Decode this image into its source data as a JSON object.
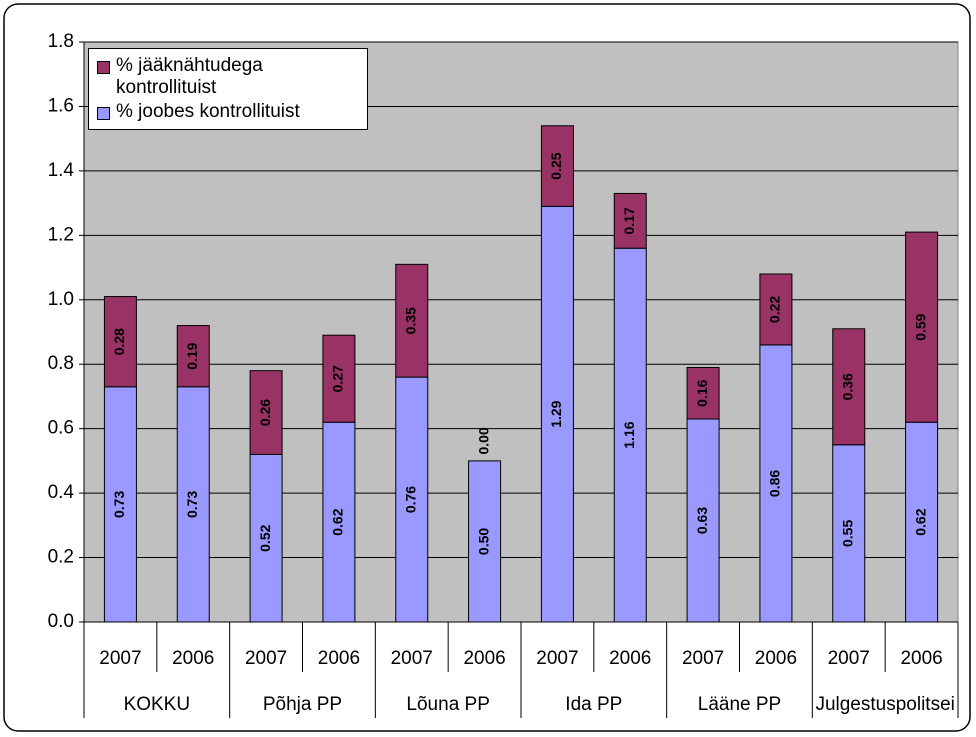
{
  "chart_data": {
    "type": "stacked_bar",
    "categories": [
      "2007",
      "2006",
      "2007",
      "2006",
      "2007",
      "2006",
      "2007",
      "2006",
      "2007",
      "2006",
      "2007",
      "2006"
    ],
    "groups": [
      "KOKKU",
      "Põhja PP",
      "Lõuna PP",
      "Ida PP",
      "Lääne PP",
      "Julgestuspolitsei"
    ],
    "series": [
      {
        "name": "% joobes kontrollituist",
        "color": "#9999ff",
        "values": [
          0.73,
          0.73,
          0.52,
          0.62,
          0.76,
          0.5,
          1.29,
          1.16,
          0.63,
          0.86,
          0.55,
          0.62
        ],
        "value_labels": [
          "0.73",
          "0.73",
          "0.52",
          "0.62",
          "0.76",
          "0.50",
          "1.29",
          "1.16",
          "0.63",
          "0.86",
          "0.55",
          "0.62"
        ]
      },
      {
        "name": "% jääknähtudega kontrollituist",
        "color": "#993366",
        "values": [
          0.28,
          0.19,
          0.26,
          0.27,
          0.35,
          0.0,
          0.25,
          0.17,
          0.16,
          0.22,
          0.36,
          0.59
        ],
        "value_labels": [
          "0.28",
          "0.19",
          "0.26",
          "0.27",
          "0.35",
          "0.00",
          "0.25",
          "0.17",
          "0.16",
          "0.22",
          "0.36",
          "0.59"
        ]
      }
    ],
    "ylim": [
      0,
      1.8
    ],
    "yticks": [
      {
        "value": 0,
        "label": "0.0"
      },
      0.2,
      0.4,
      0.6,
      0.8,
      {
        "value": 1,
        "label": "1.0"
      },
      1.2,
      1.4,
      1.6,
      1.8
    ],
    "grid": true,
    "legend": "top-left",
    "plot_background": "#c0c0c0"
  }
}
